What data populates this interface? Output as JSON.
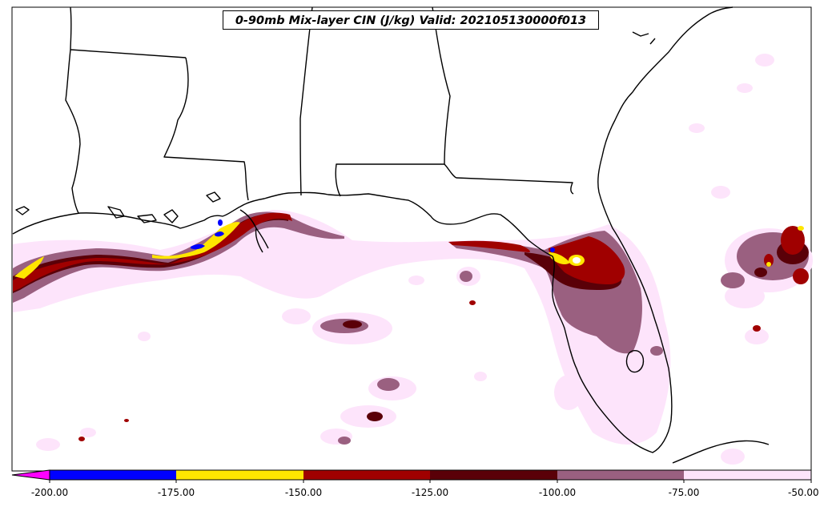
{
  "title": "0-90mb Mix-layer CIN (J/kg) Valid: 202105130000f013",
  "colorbar": {
    "levels": [
      "-200.00",
      "-175.00",
      "-150.00",
      "-125.00",
      "-100.00",
      "-75.00",
      "-50.00"
    ],
    "colors": [
      "#0000ff",
      "#ffe600",
      "#a00000",
      "#5a0008",
      "#9a6080",
      "#fde4fb"
    ],
    "under_color": "#ff00ff"
  },
  "palette": {
    "very_light": "#fde4fb",
    "mauve": "#9a6080",
    "dark_maroon": "#5a0008",
    "red": "#a00000",
    "yellow": "#ffe600",
    "blue": "#0000ff",
    "coastline": "#000000"
  }
}
